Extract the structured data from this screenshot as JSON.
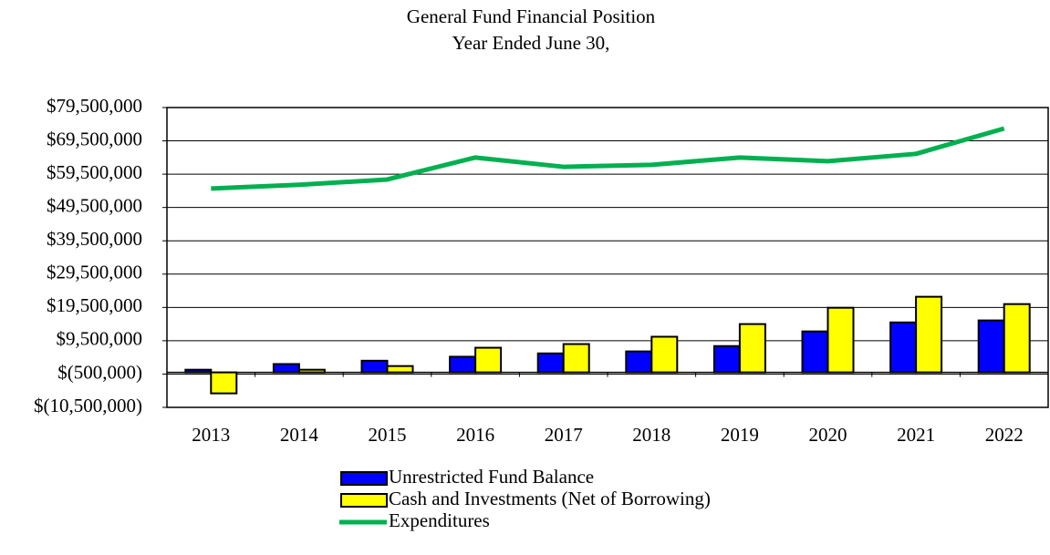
{
  "chart_data": {
    "type": "bar",
    "title": "General Fund Financial Position",
    "subtitle": "Year Ended June 30,",
    "categories": [
      "2013",
      "2014",
      "2015",
      "2016",
      "2017",
      "2018",
      "2019",
      "2020",
      "2021",
      "2022"
    ],
    "series": [
      {
        "name": "Unrestricted Fund Balance",
        "color": "#0000ff",
        "values": [
          800000,
          2500000,
          3500000,
          4700000,
          5700000,
          6300000,
          7900000,
          12300000,
          15000000,
          15600000
        ]
      },
      {
        "name": "Cash and Investments (Net of Borrowing)",
        "color": "#ffff00",
        "values": [
          -6300000,
          800000,
          1900000,
          7400000,
          8500000,
          10700000,
          14500000,
          19400000,
          22700000,
          20500000
        ]
      },
      {
        "name": "Expenditures",
        "type": "line",
        "color": "#00b050",
        "values": [
          55200000,
          56300000,
          57900000,
          64500000,
          61700000,
          62300000,
          64500000,
          63400000,
          65600000,
          73200000
        ]
      }
    ],
    "ylim": [
      -10500000,
      79500000
    ],
    "yticks": [
      {
        "value": -10500000,
        "label": "$(10,500,000)"
      },
      {
        "value": -500000,
        "label": "$(500,000)"
      },
      {
        "value": 9500000,
        "label": "$9,500,000"
      },
      {
        "value": 19500000,
        "label": "$19,500,000"
      },
      {
        "value": 29500000,
        "label": "$29,500,000"
      },
      {
        "value": 39500000,
        "label": "$39,500,000"
      },
      {
        "value": 49500000,
        "label": "$49,500,000"
      },
      {
        "value": 59500000,
        "label": "$59,500,000"
      },
      {
        "value": 69500000,
        "label": "$69,500,000"
      },
      {
        "value": 79500000,
        "label": "$79,500,000"
      }
    ],
    "grid": true
  }
}
